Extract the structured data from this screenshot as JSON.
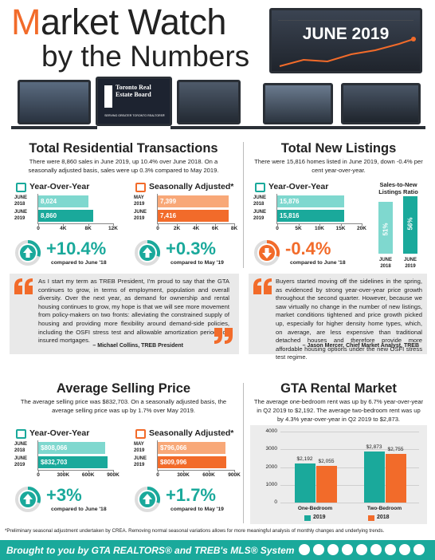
{
  "header": {
    "title": "Market Watch",
    "subtitle": "by the Numbers",
    "date": "JUNE 2019",
    "logo": "Toronto Real Estate Board",
    "logo_tagline": "SERVING GREATER TORONTO REALTORS®"
  },
  "sections": [
    {
      "title": "Total Residential Transactions",
      "text": "There were 8,860 sales in June 2019, up 10.4% over June 2018. On a seasonally adjusted basis, sales were up 0.3% compared to May 2019."
    },
    {
      "title": "Total New Listings",
      "text": "There were 15,816 homes listed in June 2019, down -0.4% per cent year-over-year."
    },
    {
      "title": "Average Selling Price",
      "text": "The average selling price was $832,703. On a seasonally adjusted basis, the average selling price was up by 1.7% over May 2019."
    },
    {
      "title": "GTA Rental Market",
      "text": "The average one-bedroom rent was up by 6.7% year-over-year in Q2 2019 to $2,192. The average two-bedroom rent was up by 4.3% year-over-year in Q2 2019 to $2,873."
    }
  ],
  "quotes": [
    {
      "text": "As I start my term as TREB President, I'm proud to say that the GTA continues to grow, in terms of employment, population and overall diversity. Over the next year, as demand for ownership and rental housing continues to grow, my hope is that we will see more movement from policy-makers on two fronts: alleviating the constrained supply of housing and providing more flexibility around demand-side policies, including the OSFI stress test and allowable amortization periods on insured mortgages.",
      "author": "– Michael Collins, TREB President"
    },
    {
      "text": "Buyers started moving off the sidelines in the spring, as evidenced by strong year-over-year price growth throughout the second quarter. However, because we saw virtually no change in the number of new listings, market conditions tightened and price growth picked up, especially for higher density home types, which, on average, are less expensive than traditional detached houses and therefore provide more affordable housing options under the new OSFI stress test regime.",
      "author": "– Jason Mercer, Chief Market Analyst, TREB"
    }
  ],
  "chart_data": [
    {
      "type": "hbar",
      "title": "Year-Over-Year",
      "categories": [
        "JUNE 2018",
        "JUNE 2019"
      ],
      "values": [
        8024,
        8860
      ],
      "value_labels": [
        "8,024",
        "8,860"
      ],
      "colors": [
        "#7fd8cf",
        "#1aa99b"
      ],
      "xlim": [
        0,
        12000
      ],
      "xticks": [
        0,
        {
          "value": 4000,
          "label": "4K"
        },
        {
          "value": 8000,
          "label": "8K"
        },
        {
          "value": 12000,
          "label": "12K"
        }
      ],
      "change": "+10.4%",
      "change_note": "compared to June '18",
      "change_color": "#1aa99b"
    },
    {
      "type": "hbar",
      "title": "Seasonally Adjusted*",
      "categories": [
        "MAY 2019",
        "JUNE 2019"
      ],
      "values": [
        7399,
        7416
      ],
      "value_labels": [
        "7,399",
        "7,416"
      ],
      "colors": [
        "#f8a878",
        "#f26b2a"
      ],
      "xlim": [
        0,
        8000
      ],
      "xticks": [
        0,
        {
          "value": 2000,
          "label": "2K"
        },
        {
          "value": 4000,
          "label": "4K"
        },
        {
          "value": 6000,
          "label": "6K"
        },
        {
          "value": 8000,
          "label": "8K"
        }
      ],
      "change": "+0.3%",
      "change_note": "compared to May '19",
      "change_color": "#1aa99b"
    },
    {
      "type": "hbar",
      "title": "Year-Over-Year",
      "categories": [
        "JUNE 2018",
        "JUNE 2019"
      ],
      "values": [
        15876,
        15816
      ],
      "value_labels": [
        "15,876",
        "15,816"
      ],
      "colors": [
        "#7fd8cf",
        "#1aa99b"
      ],
      "xlim": [
        0,
        20000
      ],
      "xticks": [
        0,
        {
          "value": 5000,
          "label": "5K"
        },
        {
          "value": 10000,
          "label": "10K"
        },
        {
          "value": 15000,
          "label": "15K"
        },
        {
          "value": 20000,
          "label": "20K"
        }
      ],
      "change": "-0.4%",
      "change_note": "compared to June '18",
      "change_color": "#f26b2a"
    },
    {
      "type": "vbar",
      "title": "Sales-to-New Listings Ratio",
      "categories": [
        "JUNE 2018",
        "JUNE 2019"
      ],
      "values": [
        51,
        56
      ],
      "value_labels": [
        "51%",
        "56%"
      ],
      "colors": [
        "#7fd8cf",
        "#1aa99b"
      ]
    },
    {
      "type": "hbar",
      "title": "Year-Over-Year",
      "categories": [
        "JUNE 2018",
        "JUNE 2019"
      ],
      "values": [
        808066,
        832703
      ],
      "value_labels": [
        "$808,066",
        "$832,703"
      ],
      "colors": [
        "#7fd8cf",
        "#1aa99b"
      ],
      "xlim": [
        0,
        900000
      ],
      "xticks": [
        0,
        {
          "value": 300000,
          "label": "300K"
        },
        {
          "value": 600000,
          "label": "600K"
        },
        {
          "value": 900000,
          "label": "900K"
        }
      ],
      "change": "+3%",
      "change_note": "compared to June '18",
      "change_color": "#1aa99b"
    },
    {
      "type": "hbar",
      "title": "Seasonally Adjusted*",
      "categories": [
        "MAY 2019",
        "JUNE 2019"
      ],
      "values": [
        796066,
        809996
      ],
      "value_labels": [
        "$796,066",
        "$809,996"
      ],
      "colors": [
        "#f8a878",
        "#f26b2a"
      ],
      "xlim": [
        0,
        900000
      ],
      "xticks": [
        0,
        {
          "value": 300000,
          "label": "300K"
        },
        {
          "value": 600000,
          "label": "600K"
        },
        {
          "value": 900000,
          "label": "900K"
        }
      ],
      "change": "+1.7%",
      "change_note": "compared to May '19",
      "change_color": "#1aa99b"
    },
    {
      "type": "grouped_bar",
      "categories": [
        "One-Bedroom",
        "Two-Bedroom"
      ],
      "series": [
        {
          "name": "2019",
          "color": "#1aa99b",
          "values": [
            2192,
            2873
          ],
          "value_labels": [
            "$2,192",
            "$2,873"
          ]
        },
        {
          "name": "2018",
          "color": "#f26b2a",
          "values": [
            2055,
            2755
          ],
          "value_labels": [
            "$2,055",
            "$2,755"
          ]
        }
      ],
      "ylim": [
        0,
        4000
      ],
      "yticks": [
        0,
        1000,
        2000,
        3000,
        4000
      ],
      "grid": true
    }
  ],
  "footnote": "*Preliminary seasonal adjustment undertaken by CREA. Removing normal seasonal variations allows for more meaningful analysis of monthly changes and underlying trends.",
  "footer": "Brought to you by GTA REALTORS® and TREB's MLS® System"
}
